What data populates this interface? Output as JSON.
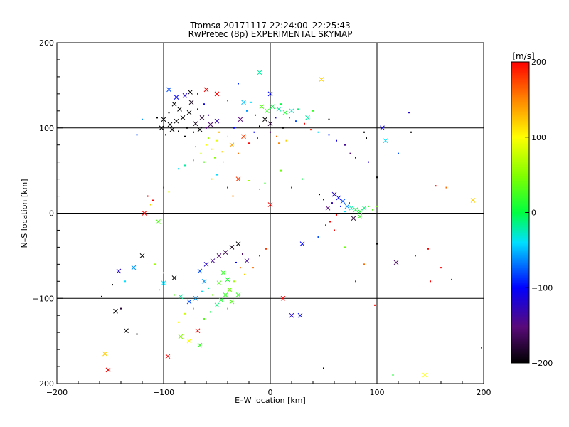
{
  "chart_data": {
    "type": "scatter",
    "title": "Tromsø 20171117 22:24:00–22:25:43",
    "subtitle": "RwPretec (8p) EXPERIMENTAL SKYMAP",
    "xlabel": "E–W location [km]",
    "ylabel": "N–S location [km]",
    "xlim": [
      -200,
      200
    ],
    "ylim": [
      -200,
      200
    ],
    "xticks": [
      "−200",
      "−100",
      "0",
      "100",
      "200"
    ],
    "yticks": [
      "−200",
      "−100",
      "0",
      "100",
      "200"
    ],
    "grid": true,
    "colorbar": {
      "label": "[m/s]",
      "range": [
        -200,
        200
      ],
      "ticks": [
        "200",
        "100",
        "0",
        "−100",
        "−200"
      ],
      "colormap": "rainbow (black to violet to blue to cyan to green to yellow to red)"
    },
    "marker_types": [
      "cross",
      "dot"
    ],
    "points": [
      [
        -88,
        108,
        -200,
        "x"
      ],
      [
        -82,
        112,
        -200,
        "x"
      ],
      [
        -76,
        118,
        -200,
        "x"
      ],
      [
        -70,
        105,
        -190,
        "x"
      ],
      [
        -92,
        98,
        -200,
        "x"
      ],
      [
        -100,
        110,
        -200,
        "x"
      ],
      [
        -64,
        112,
        -180,
        "x"
      ],
      [
        -85,
        122,
        -200,
        "x"
      ],
      [
        -78,
        100,
        -200,
        "d"
      ],
      [
        -95,
        118,
        -200,
        "d"
      ],
      [
        -72,
        95,
        -200,
        "d"
      ],
      [
        -60,
        100,
        -150,
        "d"
      ],
      [
        -98,
        92,
        -200,
        "d"
      ],
      [
        -68,
        122,
        -120,
        "d"
      ],
      [
        -56,
        104,
        -160,
        "x"
      ],
      [
        -90,
        128,
        -200,
        "x"
      ],
      [
        -102,
        100,
        -200,
        "x"
      ],
      [
        -74,
        130,
        -190,
        "x"
      ],
      [
        -80,
        90,
        -200,
        "d"
      ],
      [
        -66,
        98,
        -200,
        "x"
      ],
      [
        -58,
        115,
        -140,
        "d"
      ],
      [
        -94,
        104,
        -200,
        "x"
      ],
      [
        -86,
        96,
        -200,
        "d"
      ],
      [
        -50,
        108,
        -130,
        "x"
      ],
      [
        -106,
        112,
        -200,
        "d"
      ],
      [
        -62,
        128,
        -110,
        "d"
      ],
      [
        -75,
        142,
        -200,
        "x"
      ],
      [
        -80,
        138,
        -120,
        "x"
      ],
      [
        -88,
        136,
        -100,
        "x"
      ],
      [
        -95,
        145,
        -80,
        "x"
      ],
      [
        -68,
        140,
        -90,
        "d"
      ],
      [
        -60,
        145,
        200,
        "x"
      ],
      [
        -50,
        140,
        200,
        "x"
      ],
      [
        -40,
        132,
        -60,
        "d"
      ],
      [
        -120,
        110,
        -60,
        "d"
      ],
      [
        -125,
        92,
        -80,
        "d"
      ],
      [
        -60,
        80,
        100,
        "d"
      ],
      [
        -55,
        75,
        110,
        "d"
      ],
      [
        -50,
        85,
        90,
        "d"
      ],
      [
        -65,
        70,
        80,
        "d"
      ],
      [
        -45,
        72,
        120,
        "d"
      ],
      [
        -58,
        88,
        60,
        "d"
      ],
      [
        -70,
        78,
        40,
        "d"
      ],
      [
        -40,
        90,
        100,
        "d"
      ],
      [
        -52,
        65,
        50,
        "d"
      ],
      [
        -62,
        60,
        30,
        "d"
      ],
      [
        -48,
        95,
        130,
        "d"
      ],
      [
        -36,
        80,
        140,
        "x"
      ],
      [
        -72,
        62,
        20,
        "d"
      ],
      [
        -80,
        56,
        -20,
        "d"
      ],
      [
        -86,
        52,
        -40,
        "d"
      ],
      [
        -44,
        60,
        90,
        "d"
      ],
      [
        -30,
        70,
        160,
        "d"
      ],
      [
        -25,
        90,
        180,
        "x"
      ],
      [
        -20,
        82,
        200,
        "d"
      ],
      [
        -15,
        95,
        -100,
        "d"
      ],
      [
        -10,
        102,
        -200,
        "d"
      ],
      [
        -5,
        110,
        -200,
        "x"
      ],
      [
        0,
        105,
        -180,
        "x"
      ],
      [
        5,
        112,
        -120,
        "d"
      ],
      [
        -28,
        110,
        -150,
        "x"
      ],
      [
        -34,
        100,
        -100,
        "d"
      ],
      [
        -22,
        120,
        -60,
        "d"
      ],
      [
        -14,
        115,
        200,
        "d"
      ],
      [
        -3,
        120,
        20,
        "x"
      ],
      [
        2,
        125,
        0,
        "x"
      ],
      [
        8,
        122,
        -20,
        "x"
      ],
      [
        14,
        118,
        10,
        "x"
      ],
      [
        20,
        120,
        -30,
        "x"
      ],
      [
        26,
        122,
        -10,
        "d"
      ],
      [
        -8,
        125,
        30,
        "x"
      ],
      [
        -18,
        130,
        -40,
        "d"
      ],
      [
        -25,
        130,
        -50,
        "x"
      ],
      [
        10,
        128,
        0,
        "d"
      ],
      [
        18,
        112,
        -60,
        "d"
      ],
      [
        24,
        108,
        -80,
        "d"
      ],
      [
        12,
        100,
        -200,
        "d"
      ],
      [
        0,
        95,
        -150,
        "d"
      ],
      [
        6,
        90,
        160,
        "d"
      ],
      [
        -12,
        88,
        200,
        "d"
      ],
      [
        32,
        105,
        200,
        "d"
      ],
      [
        38,
        98,
        190,
        "d"
      ],
      [
        15,
        85,
        120,
        "d"
      ],
      [
        8,
        82,
        150,
        "d"
      ],
      [
        0,
        140,
        -100,
        "x"
      ],
      [
        -10,
        165,
        -20,
        "x"
      ],
      [
        48,
        157,
        120,
        "x"
      ],
      [
        -30,
        152,
        -90,
        "d"
      ],
      [
        40,
        120,
        20,
        "d"
      ],
      [
        35,
        112,
        -20,
        "x"
      ],
      [
        45,
        95,
        -40,
        "d"
      ],
      [
        55,
        92,
        -90,
        "d"
      ],
      [
        62,
        85,
        -110,
        "d"
      ],
      [
        70,
        80,
        -140,
        "d"
      ],
      [
        75,
        70,
        -150,
        "d"
      ],
      [
        80,
        65,
        -120,
        "d"
      ],
      [
        90,
        88,
        -200,
        "d"
      ],
      [
        105,
        100,
        -110,
        "x"
      ],
      [
        108,
        85,
        -40,
        "x"
      ],
      [
        100,
        42,
        -200,
        "d"
      ],
      [
        92,
        60,
        -120,
        "d"
      ],
      [
        55,
        110,
        -200,
        "d"
      ],
      [
        88,
        95,
        -200,
        "d"
      ],
      [
        60,
        22,
        -120,
        "x"
      ],
      [
        64,
        18,
        -100,
        "x"
      ],
      [
        68,
        14,
        -80,
        "x"
      ],
      [
        72,
        8,
        -60,
        "x"
      ],
      [
        76,
        6,
        -20,
        "x"
      ],
      [
        80,
        4,
        0,
        "x"
      ],
      [
        84,
        2,
        10,
        "x"
      ],
      [
        88,
        6,
        -10,
        "x"
      ],
      [
        92,
        8,
        20,
        "d"
      ],
      [
        96,
        4,
        30,
        "d"
      ],
      [
        100,
        8,
        40,
        "d"
      ],
      [
        70,
        2,
        -40,
        "d"
      ],
      [
        74,
        12,
        -80,
        "d"
      ],
      [
        66,
        8,
        -100,
        "d"
      ],
      [
        58,
        12,
        -130,
        "d"
      ],
      [
        54,
        6,
        -150,
        "x"
      ],
      [
        50,
        16,
        -170,
        "d"
      ],
      [
        46,
        22,
        -200,
        "d"
      ],
      [
        78,
        -6,
        -180,
        "x"
      ],
      [
        84,
        -4,
        20,
        "x"
      ],
      [
        62,
        -2,
        200,
        "d"
      ],
      [
        56,
        -10,
        200,
        "d"
      ],
      [
        52,
        -14,
        200,
        "d"
      ],
      [
        60,
        -20,
        200,
        "d"
      ],
      [
        20,
        30,
        -80,
        "d"
      ],
      [
        30,
        40,
        0,
        "d"
      ],
      [
        10,
        50,
        40,
        "d"
      ],
      [
        -30,
        40,
        180,
        "x"
      ],
      [
        -40,
        30,
        200,
        "d"
      ],
      [
        -35,
        20,
        150,
        "d"
      ],
      [
        -20,
        38,
        60,
        "d"
      ],
      [
        -10,
        28,
        40,
        "d"
      ],
      [
        0,
        10,
        200,
        "x"
      ],
      [
        -5,
        35,
        20,
        "d"
      ],
      [
        -50,
        45,
        -40,
        "d"
      ],
      [
        -55,
        40,
        120,
        "d"
      ],
      [
        -115,
        20,
        200,
        "d"
      ],
      [
        -110,
        15,
        200,
        "d"
      ],
      [
        -118,
        0,
        200,
        "x"
      ],
      [
        -105,
        -10,
        30,
        "x"
      ],
      [
        -112,
        10,
        120,
        "d"
      ],
      [
        -100,
        30,
        200,
        "d"
      ],
      [
        -95,
        25,
        90,
        "d"
      ],
      [
        -44,
        -70,
        20,
        "x"
      ],
      [
        -40,
        -78,
        10,
        "x"
      ],
      [
        -48,
        -82,
        30,
        "x"
      ],
      [
        -38,
        -90,
        40,
        "x"
      ],
      [
        -42,
        -96,
        20,
        "x"
      ],
      [
        -46,
        -102,
        10,
        "x"
      ],
      [
        -50,
        -108,
        -10,
        "x"
      ],
      [
        -36,
        -104,
        30,
        "x"
      ],
      [
        -40,
        -112,
        20,
        "d"
      ],
      [
        -54,
        -96,
        40,
        "d"
      ],
      [
        -58,
        -88,
        -20,
        "d"
      ],
      [
        -62,
        -80,
        -60,
        "x"
      ],
      [
        -66,
        -68,
        -80,
        "x"
      ],
      [
        -60,
        -60,
        -120,
        "x"
      ],
      [
        -54,
        -56,
        -140,
        "x"
      ],
      [
        -48,
        -50,
        -160,
        "x"
      ],
      [
        -42,
        -46,
        -170,
        "x"
      ],
      [
        -36,
        -40,
        -190,
        "x"
      ],
      [
        -30,
        -36,
        -200,
        "x"
      ],
      [
        -26,
        -48,
        -160,
        "d"
      ],
      [
        -22,
        -56,
        -140,
        "x"
      ],
      [
        -32,
        -58,
        -100,
        "d"
      ],
      [
        -28,
        -64,
        160,
        "d"
      ],
      [
        -64,
        -92,
        -40,
        "d"
      ],
      [
        -70,
        -100,
        -60,
        "x"
      ],
      [
        -76,
        -104,
        -80,
        "x"
      ],
      [
        -84,
        -98,
        -20,
        "x"
      ],
      [
        -90,
        -96,
        30,
        "d"
      ],
      [
        -72,
        -112,
        20,
        "d"
      ],
      [
        -80,
        -118,
        80,
        "d"
      ],
      [
        -86,
        -128,
        100,
        "d"
      ],
      [
        -68,
        -138,
        200,
        "x"
      ],
      [
        -76,
        -150,
        100,
        "x"
      ],
      [
        -84,
        -145,
        50,
        "x"
      ],
      [
        -66,
        -155,
        20,
        "x"
      ],
      [
        -96,
        -168,
        200,
        "x"
      ],
      [
        -100,
        -82,
        -40,
        "x"
      ],
      [
        -104,
        -90,
        60,
        "d"
      ],
      [
        -30,
        -96,
        20,
        "x"
      ],
      [
        -56,
        -116,
        0,
        "d"
      ],
      [
        -62,
        -124,
        30,
        "d"
      ],
      [
        -34,
        -80,
        60,
        "d"
      ],
      [
        -24,
        -72,
        120,
        "d"
      ],
      [
        -16,
        -64,
        160,
        "d"
      ],
      [
        -10,
        -50,
        200,
        "d"
      ],
      [
        -4,
        -42,
        180,
        "d"
      ],
      [
        -120,
        -50,
        -200,
        "x"
      ],
      [
        -128,
        -64,
        -60,
        "x"
      ],
      [
        -142,
        -68,
        -120,
        "x"
      ],
      [
        -136,
        -80,
        -40,
        "d"
      ],
      [
        -148,
        -84,
        -200,
        "d"
      ],
      [
        -158,
        -98,
        -200,
        "d"
      ],
      [
        -145,
        -115,
        -200,
        "x"
      ],
      [
        -140,
        -112,
        -180,
        "d"
      ],
      [
        -135,
        -138,
        -200,
        "x"
      ],
      [
        -125,
        -142,
        -200,
        "d"
      ],
      [
        -155,
        -165,
        120,
        "x"
      ],
      [
        -152,
        -184,
        200,
        "x"
      ],
      [
        -100,
        -70,
        100,
        "d"
      ],
      [
        -108,
        -60,
        60,
        "d"
      ],
      [
        -90,
        -76,
        -200,
        "x"
      ],
      [
        20,
        -120,
        -120,
        "x"
      ],
      [
        28,
        -120,
        -100,
        "x"
      ],
      [
        12,
        -100,
        200,
        "x"
      ],
      [
        30,
        -36,
        -100,
        "x"
      ],
      [
        45,
        -28,
        -80,
        "d"
      ],
      [
        50,
        -182,
        -200,
        "d"
      ],
      [
        98,
        -108,
        200,
        "d"
      ],
      [
        100,
        -36,
        -200,
        "d"
      ],
      [
        118,
        -58,
        -160,
        "x"
      ],
      [
        115,
        -190,
        10,
        "d"
      ],
      [
        145,
        -190,
        100,
        "x"
      ],
      [
        148,
        -42,
        200,
        "d"
      ],
      [
        136,
        -50,
        200,
        "d"
      ],
      [
        150,
        -80,
        200,
        "d"
      ],
      [
        160,
        -64,
        200,
        "d"
      ],
      [
        170,
        -78,
        200,
        "d"
      ],
      [
        80,
        -80,
        200,
        "d"
      ],
      [
        88,
        -60,
        160,
        "d"
      ],
      [
        70,
        -40,
        40,
        "d"
      ],
      [
        190,
        15,
        120,
        "x"
      ],
      [
        165,
        30,
        160,
        "d"
      ],
      [
        155,
        32,
        200,
        "d"
      ],
      [
        198,
        -158,
        200,
        "d"
      ],
      [
        130,
        118,
        -120,
        "d"
      ],
      [
        132,
        95,
        -200,
        "d"
      ],
      [
        120,
        70,
        -80,
        "d"
      ]
    ]
  }
}
